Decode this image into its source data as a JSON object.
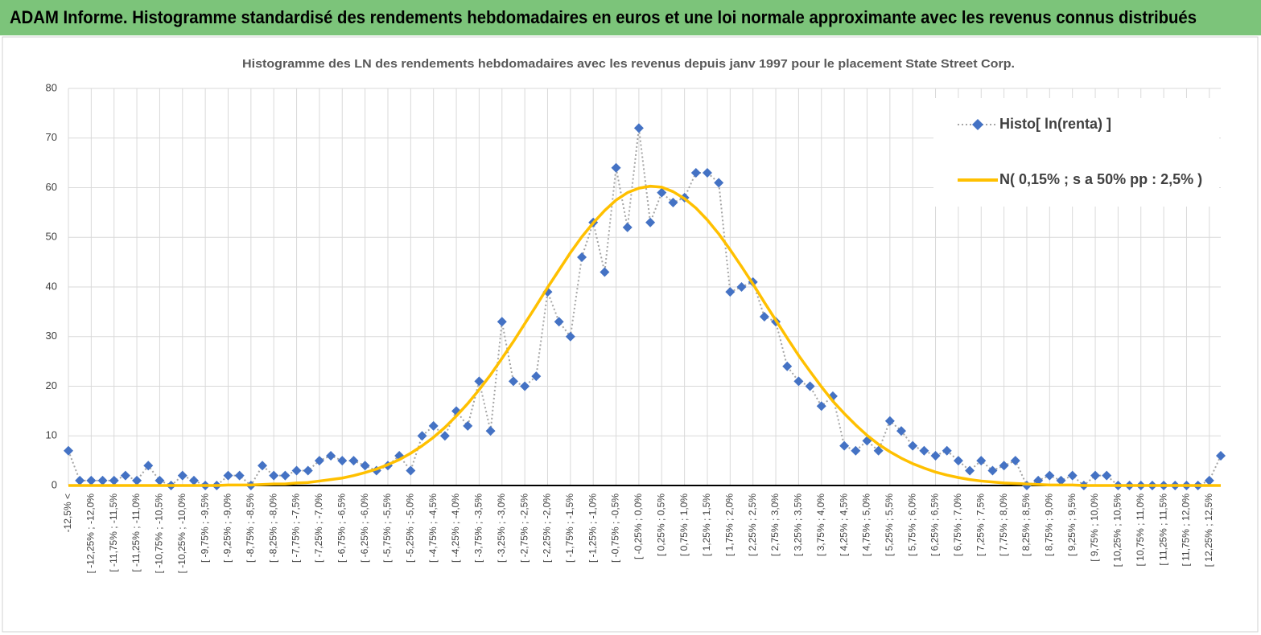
{
  "header": {
    "title": "ADAM Informe. Histogramme standardisé des rendements hebdomadaires en euros et une loi normale approximante avec les revenus connus distribués"
  },
  "chart_data": {
    "type": "line",
    "title": "Histogramme  des LN des rendements hebdomadaires avec les revenus depuis janv 1997 pour le placement State Street Corp.",
    "categories": [
      "-12,5% <",
      null,
      "[ -12,25% ; -12,0%",
      null,
      "[ -11,75% ; -11,5%",
      null,
      "[ -11,25% ; -11,0%",
      null,
      "[ -10,75% ; -10,5%",
      null,
      "[ -10,25% ; -10,0%",
      null,
      "[ -9,75% ; -9,5%",
      null,
      "[ -9,25% ; -9,0%",
      null,
      "[ -8,75% ; -8,5%",
      null,
      "[ -8,25% ; -8,0%",
      null,
      "[ -7,75% ; -7,5%",
      null,
      "[ -7,25% ; -7,0%",
      null,
      "[ -6,75% ; -6,5%",
      null,
      "[ -6,25% ; -6,0%",
      null,
      "[ -5,75% ; -5,5%",
      null,
      "[ -5,25% ; -5,0%",
      null,
      "[ -4,75% ; -4,5%",
      null,
      "[ -4,25% ; -4,0%",
      null,
      "[ -3,75% ; -3,5%",
      null,
      "[ -3,25% ; -3,0%",
      null,
      "[ -2,75% ; -2,5%",
      null,
      "[ -2,25% ; -2,0%",
      null,
      "[ -1,75% ; -1,5%",
      null,
      "[ -1,25% ; -1,0%",
      null,
      "[ -0,75% ; -0,5%",
      null,
      "[ -0,25% ; 0,0%",
      null,
      "[ 0,25% ; 0,5%",
      null,
      "[ 0,75% ; 1,0%",
      null,
      "[ 1,25% ; 1,5%",
      null,
      "[ 1,75% ; 2,0%",
      null,
      "[ 2,25% ; 2,5%",
      null,
      "[ 2,75% ; 3,0%",
      null,
      "[ 3,25% ; 3,5%",
      null,
      "[ 3,75% ; 4,0%",
      null,
      "[ 4,25% ; 4,5%",
      null,
      "[ 4,75% ; 5,0%",
      null,
      "[ 5,25% ; 5,5%",
      null,
      "[ 5,75% ; 6,0%",
      null,
      "[ 6,25% ; 6,5%",
      null,
      "[ 6,75% ; 7,0%",
      null,
      "[ 7,25% ; 7,5%",
      null,
      "[ 7,75% ; 8,0%",
      null,
      "[ 8,25% ; 8,5%",
      null,
      "[ 8,75% ; 9,0%",
      null,
      "[ 9,25% ; 9,5%",
      null,
      "[ 9,75% ; 10,0%",
      null,
      "[ 10,25% ; 10,5%",
      null,
      "[ 10,75% ; 11,0%",
      null,
      "[ 11,25% ; 11,5%",
      null,
      "[ 11,75% ; 12,0%",
      null,
      "[ 12,25% ; 12,5%",
      null
    ],
    "series": [
      {
        "name": "Histo[ ln(renta) ]",
        "color": "#4472c4",
        "line_color": "#a5a5a5",
        "values": [
          7,
          1,
          1,
          1,
          1,
          2,
          1,
          4,
          1,
          0,
          2,
          1,
          0,
          0,
          2,
          2,
          0,
          4,
          2,
          2,
          3,
          3,
          5,
          6,
          5,
          5,
          4,
          3,
          4,
          6,
          3,
          10,
          12,
          10,
          15,
          12,
          21,
          11,
          33,
          21,
          20,
          22,
          39,
          33,
          30,
          46,
          53,
          43,
          64,
          52,
          72,
          53,
          59,
          57,
          58,
          63,
          63,
          61,
          39,
          40,
          41,
          34,
          33,
          24,
          21,
          20,
          16,
          18,
          8,
          7,
          9,
          7,
          13,
          11,
          8,
          7,
          6,
          7,
          5,
          3,
          5,
          3,
          4,
          5,
          0,
          1,
          2,
          1,
          2,
          0,
          2,
          2,
          0,
          0,
          0,
          0,
          0,
          0,
          0,
          0,
          1,
          6
        ]
      },
      {
        "name": "N( 0,15% ; s a 50% pp : 2,5% )",
        "color": "#ffc000",
        "values": [
          0,
          0,
          0,
          0,
          0,
          0,
          0,
          0,
          0,
          0,
          0,
          0,
          0,
          0,
          0.1,
          0.1,
          0.1,
          0.2,
          0.3,
          0.3,
          0.5,
          0.6,
          0.9,
          1.2,
          1.5,
          2.0,
          2.6,
          3.3,
          4.2,
          5.2,
          6.5,
          8.0,
          9.7,
          11.7,
          14.0,
          16.5,
          19.3,
          22.3,
          25.6,
          29.0,
          32.6,
          36.2,
          39.9,
          43.4,
          46.9,
          50.1,
          52.9,
          55.4,
          57.5,
          59.0,
          59.9,
          60.3,
          60.1,
          59.2,
          57.8,
          55.9,
          53.5,
          50.7,
          47.5,
          44.1,
          40.6,
          36.9,
          33.3,
          29.7,
          26.2,
          23.0,
          19.9,
          17.0,
          14.5,
          12.2,
          10.1,
          8.3,
          6.8,
          5.5,
          4.4,
          3.5,
          2.7,
          2.1,
          1.6,
          1.2,
          0.9,
          0.7,
          0.5,
          0.4,
          0.3,
          0.2,
          0.1,
          0.1,
          0.1,
          0,
          0,
          0,
          0,
          0,
          0,
          0,
          0,
          0,
          0,
          0,
          0,
          0
        ]
      }
    ],
    "ylim": [
      0,
      80
    ],
    "yticks": [
      0,
      10,
      20,
      30,
      40,
      50,
      60,
      70,
      80
    ],
    "grid": true,
    "legend": "upper right"
  }
}
